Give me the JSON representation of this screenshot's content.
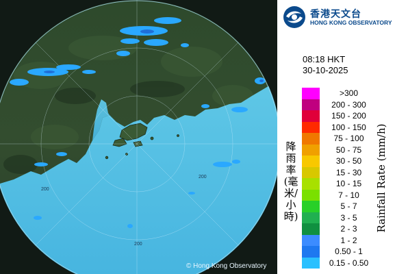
{
  "header": {
    "org_chinese": "香港天文台",
    "org_english": "HONG KONG OBSERVATORY"
  },
  "timestamp": {
    "time": "08:18 HKT",
    "date": "30-10-2025"
  },
  "legend": {
    "title_chinese": "降雨率(毫米/小時)",
    "title_english": "Rainfall Rate (mm/h)",
    "items": [
      {
        "label": ">300",
        "color": "#ff00ff"
      },
      {
        "label": "200 - 300",
        "color": "#c0007f"
      },
      {
        "label": "150 - 200",
        "color": "#e0003a"
      },
      {
        "label": "100 - 150",
        "color": "#ff2a00"
      },
      {
        "label": "75 - 100",
        "color": "#f07800"
      },
      {
        "label": "50 - 75",
        "color": "#f0a000"
      },
      {
        "label": "30 - 50",
        "color": "#f8c800"
      },
      {
        "label": "15 - 30",
        "color": "#d8c800"
      },
      {
        "label": "10 - 15",
        "color": "#a8e000"
      },
      {
        "label": "7 - 10",
        "color": "#7ae000"
      },
      {
        "label": "5 - 7",
        "color": "#28d028"
      },
      {
        "label": "3 - 5",
        "color": "#20b050"
      },
      {
        "label": "2 - 3",
        "color": "#109040"
      },
      {
        "label": "1 - 2",
        "color": "#3c8cff"
      },
      {
        "label": "0.50 - 1",
        "color": "#1e78f0"
      },
      {
        "label": "0.15 - 0.50",
        "color": "#2ac0ff"
      }
    ]
  },
  "map": {
    "range_ring_labels": [
      "200",
      "200",
      "200"
    ],
    "copyright": "© Hong Kong Observatory"
  }
}
